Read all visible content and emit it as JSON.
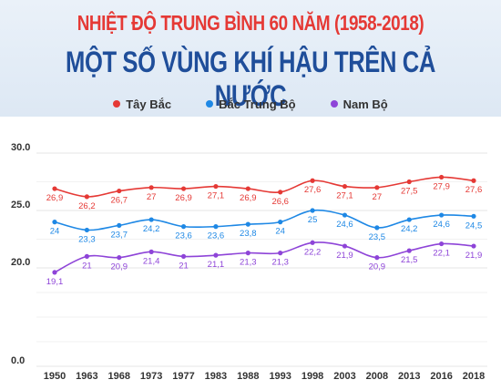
{
  "header": {
    "title_line1": "NHIỆT ĐỘ TRUNG BÌNH 60 NĂM (1958-2018)",
    "title_line2": "MỘT SỐ VÙNG KHÍ HẬU TRÊN CẢ NƯỚC"
  },
  "chart_data": {
    "type": "line",
    "title": "NHIỆT ĐỘ TRUNG BÌNH 60 NĂM (1958-2018)",
    "subtitle": "MỘT SỐ VÙNG KHÍ HẬU TRÊN CẢ NƯỚC",
    "categories": [
      "1950",
      "1963",
      "1968",
      "1973",
      "1977",
      "1983",
      "1988",
      "1993",
      "1998",
      "2003",
      "2008",
      "2013",
      "2016",
      "2018"
    ],
    "y_ticks": [
      "0.0",
      "20.0",
      "25.0",
      "30.0"
    ],
    "ylim": [
      0,
      30
    ],
    "y_axis_break": true,
    "grid": true,
    "legend_position": "top",
    "series": [
      {
        "name": "Tây Bắc",
        "color": "#e53935",
        "values": [
          26.9,
          26.2,
          26.7,
          27,
          26.9,
          27.1,
          26.9,
          26.6,
          27.6,
          27.1,
          27,
          27.5,
          27.9,
          27.6
        ],
        "labels": [
          "26,9",
          "26,2",
          "26,7",
          "27",
          "26,9",
          "27,1",
          "26,9",
          "26,6",
          "27,6",
          "27,1",
          "27",
          "27,5",
          "27,9",
          "27,6"
        ]
      },
      {
        "name": "Bắc Trung Bộ",
        "color": "#1e88e5",
        "values": [
          24,
          23.3,
          23.7,
          24.2,
          23.6,
          23.6,
          23.8,
          24,
          25,
          24.6,
          23.5,
          24.2,
          24.6,
          24.5
        ],
        "labels": [
          "24",
          "23,3",
          "23,7",
          "24,2",
          "23,6",
          "23,6",
          "23,8",
          "24",
          "25",
          "24,6",
          "23,5",
          "24,2",
          "24,6",
          "24,5"
        ]
      },
      {
        "name": "Nam Bộ",
        "color": "#8e44d8",
        "values": [
          19.1,
          21,
          20.9,
          21.4,
          21,
          21.1,
          21.3,
          21.3,
          22.2,
          21.9,
          20.9,
          21.5,
          22.1,
          21.9
        ],
        "labels": [
          "19,1",
          "21",
          "20,9",
          "21,4",
          "21",
          "21,1",
          "21,3",
          "21,3",
          "22,2",
          "21,9",
          "20,9",
          "21,5",
          "22,1",
          "21,9"
        ]
      }
    ]
  }
}
